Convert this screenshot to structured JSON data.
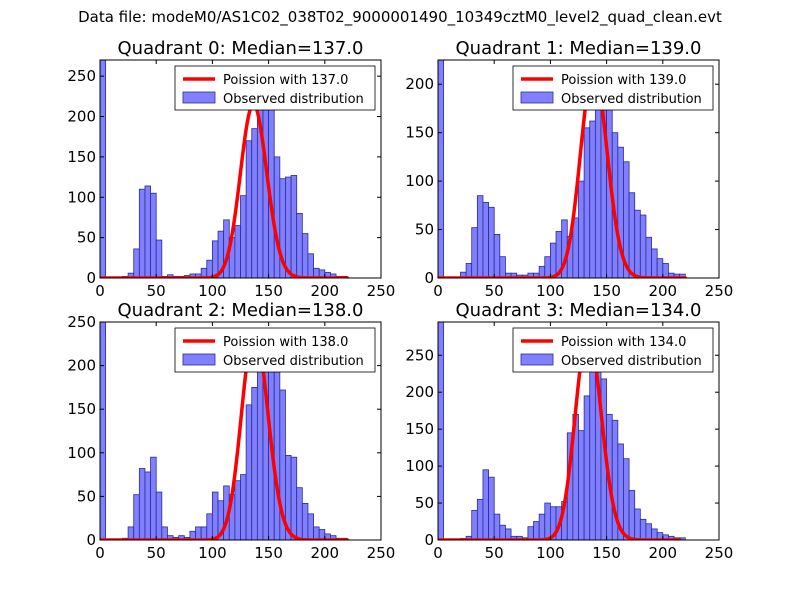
{
  "figure": {
    "suptitle": "Data file: modeM0/AS1C02_038T02_9000001490_10349cztM0_level2_quad_clean.evt"
  },
  "colors": {
    "hist_fill": "#8080ff",
    "hist_edge": "#2a2a99",
    "poisson_line": "#ff0000",
    "axes": "#000000"
  },
  "chart_data": [
    {
      "type": "bar",
      "title": "Quadrant 0: Median=137.0",
      "xlim": [
        0,
        250
      ],
      "ylim": [
        0,
        270
      ],
      "xticks": [
        0,
        50,
        100,
        150,
        200,
        250
      ],
      "yticks": [
        0,
        50,
        100,
        150,
        200,
        250
      ],
      "bin_width": 5,
      "legend": {
        "placement": "top-right",
        "entries": [
          "Poission with 137.0",
          "Observed distribution"
        ]
      },
      "poisson_mean": 137.0,
      "poisson_peak": 215,
      "poisson_range": [
        0,
        220
      ],
      "histogram": {
        "name": "Observed distribution",
        "bins_start": [
          0,
          20,
          25,
          30,
          35,
          40,
          45,
          50,
          55,
          60,
          65,
          70,
          75,
          80,
          85,
          90,
          95,
          100,
          105,
          110,
          115,
          120,
          125,
          130,
          135,
          140,
          145,
          150,
          155,
          160,
          165,
          170,
          175,
          180,
          185,
          190,
          195,
          200,
          205,
          210,
          215
        ],
        "values": [
          270,
          2,
          6,
          36,
          110,
          114,
          105,
          47,
          2,
          4,
          2,
          2,
          3,
          5,
          5,
          12,
          22,
          46,
          58,
          72,
          50,
          65,
          102,
          170,
          185,
          225,
          208,
          250,
          150,
          123,
          125,
          127,
          80,
          55,
          30,
          12,
          10,
          7,
          5,
          2,
          2
        ]
      }
    },
    {
      "type": "bar",
      "title": "Quadrant 1: Median=139.0",
      "xlim": [
        0,
        250
      ],
      "ylim": [
        0,
        225
      ],
      "xticks": [
        0,
        50,
        100,
        150,
        200,
        250
      ],
      "yticks": [
        0,
        50,
        100,
        150,
        200
      ],
      "bin_width": 5,
      "legend": {
        "placement": "top-right",
        "entries": [
          "Poission with 139.0",
          "Observed distribution"
        ]
      },
      "poisson_mean": 139.0,
      "poisson_peak": 215,
      "poisson_range": [
        0,
        220
      ],
      "histogram": {
        "name": "Observed distribution",
        "bins_start": [
          0,
          20,
          25,
          30,
          35,
          40,
          45,
          50,
          55,
          60,
          65,
          70,
          75,
          80,
          85,
          90,
          95,
          100,
          105,
          110,
          115,
          120,
          125,
          130,
          135,
          140,
          145,
          150,
          155,
          160,
          165,
          170,
          175,
          180,
          185,
          190,
          195,
          200,
          205,
          210,
          215
        ],
        "values": [
          225,
          6,
          15,
          52,
          85,
          78,
          73,
          45,
          22,
          5,
          5,
          3,
          3,
          5,
          5,
          12,
          22,
          36,
          48,
          60,
          43,
          62,
          100,
          155,
          162,
          210,
          178,
          210,
          150,
          135,
          120,
          88,
          70,
          65,
          42,
          30,
          20,
          15,
          5,
          4,
          4
        ]
      }
    },
    {
      "type": "bar",
      "title": "Quadrant 2: Median=138.0",
      "xlim": [
        0,
        250
      ],
      "ylim": [
        0,
        250
      ],
      "xticks": [
        0,
        50,
        100,
        150,
        200,
        250
      ],
      "yticks": [
        0,
        50,
        100,
        150,
        200,
        250
      ],
      "bin_width": 5,
      "legend": {
        "placement": "top-right",
        "entries": [
          "Poission with 138.0",
          "Observed distribution"
        ]
      },
      "poisson_mean": 138.0,
      "poisson_peak": 240,
      "poisson_range": [
        0,
        220
      ],
      "histogram": {
        "name": "Observed distribution",
        "bins_start": [
          0,
          20,
          25,
          30,
          35,
          40,
          45,
          50,
          55,
          60,
          65,
          70,
          75,
          80,
          85,
          90,
          95,
          100,
          105,
          110,
          115,
          120,
          125,
          130,
          135,
          140,
          145,
          150,
          155,
          160,
          165,
          170,
          175,
          180,
          185,
          190,
          195,
          200,
          205,
          210,
          215
        ],
        "values": [
          250,
          2,
          15,
          52,
          82,
          78,
          95,
          55,
          15,
          5,
          3,
          5,
          3,
          10,
          15,
          15,
          30,
          55,
          45,
          62,
          52,
          68,
          75,
          155,
          175,
          200,
          232,
          215,
          232,
          172,
          97,
          95,
          60,
          42,
          30,
          15,
          12,
          7,
          5,
          2,
          2
        ]
      }
    },
    {
      "type": "bar",
      "title": "Quadrant 3: Median=134.0",
      "xlim": [
        0,
        250
      ],
      "ylim": [
        0,
        295
      ],
      "xticks": [
        0,
        50,
        100,
        150,
        200,
        250
      ],
      "yticks": [
        0,
        50,
        100,
        150,
        200,
        250
      ],
      "bin_width": 5,
      "legend": {
        "placement": "top-right",
        "entries": [
          "Poission with 134.0",
          "Observed distribution"
        ]
      },
      "poisson_mean": 134.0,
      "poisson_peak": 280,
      "poisson_range": [
        0,
        215
      ],
      "histogram": {
        "name": "Observed distribution",
        "bins_start": [
          0,
          20,
          25,
          30,
          35,
          40,
          45,
          50,
          55,
          60,
          65,
          70,
          75,
          80,
          85,
          90,
          95,
          100,
          105,
          110,
          115,
          120,
          125,
          130,
          135,
          140,
          145,
          150,
          155,
          160,
          165,
          170,
          175,
          180,
          185,
          190,
          195,
          200,
          205,
          210,
          215
        ],
        "values": [
          295,
          2,
          5,
          40,
          55,
          95,
          85,
          35,
          20,
          15,
          5,
          5,
          3,
          18,
          25,
          35,
          50,
          45,
          45,
          52,
          145,
          170,
          148,
          195,
          255,
          280,
          218,
          170,
          162,
          130,
          110,
          67,
          42,
          28,
          22,
          15,
          10,
          7,
          5,
          3,
          3
        ]
      }
    }
  ]
}
